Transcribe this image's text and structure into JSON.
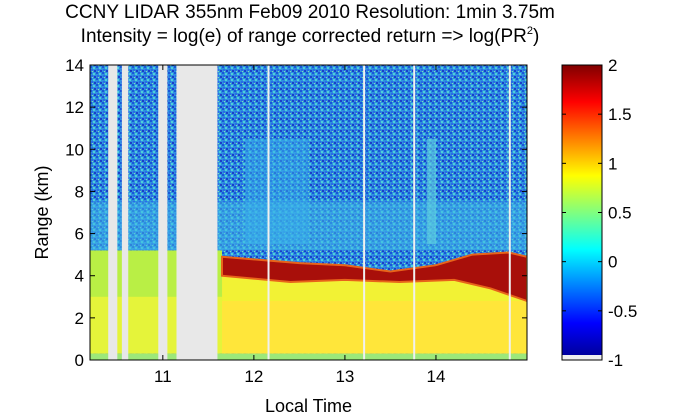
{
  "chart_data": {
    "type": "heatmap",
    "title": "CCNY LIDAR 355nm Feb09 2010 Resolution: 1min 3.75m",
    "subtitle_prefix": "Intensity = log(e) of range corrected return => log(PR",
    "subtitle_superscript": "2",
    "subtitle_suffix": ")",
    "xlabel": "Local Time",
    "ylabel": "Range (km)",
    "xlim": [
      10.2,
      15.0
    ],
    "ylim": [
      0,
      14
    ],
    "xticks": [
      11,
      12,
      13,
      14
    ],
    "yticks": [
      0,
      2,
      4,
      6,
      8,
      10,
      12,
      14
    ],
    "colorbar": {
      "range": [
        -1,
        2
      ],
      "ticks": [
        2,
        1.5,
        1,
        0.5,
        0,
        -0.5,
        -1
      ],
      "tick_labels": [
        "2",
        "1.5",
        "1",
        "0.5",
        "0",
        "-0.5",
        "-1"
      ],
      "colormap": "jet"
    },
    "data_gaps_hours": [
      [
        10.4,
        10.5
      ],
      [
        10.55,
        10.62
      ],
      [
        10.95,
        11.05
      ],
      [
        11.15,
        11.6
      ]
    ],
    "layers": [
      {
        "name": "surface",
        "range_km": [
          0.0,
          0.3
        ],
        "value": 0.7
      },
      {
        "name": "boundary layer",
        "range_km": [
          0.3,
          4.2
        ],
        "value": 0.95
      },
      {
        "name": "elevated aerosol layer",
        "start_time": 11.65,
        "end_time": 15.0,
        "top_km": [
          4.9,
          4.5
        ],
        "bottom_km": [
          4.0,
          2.8
        ],
        "value": 1.9
      },
      {
        "name": "free troposphere noise",
        "range_km": [
          5.5,
          14
        ],
        "value": 0.3
      }
    ]
  }
}
